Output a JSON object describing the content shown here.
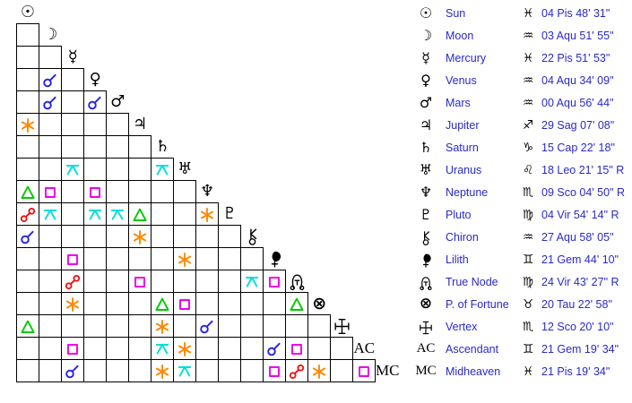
{
  "colors": {
    "conjunction": "#2222ee",
    "sextile": "#ff8800",
    "square": "#ee00ee",
    "trine": "#00cc00",
    "opposition": "#ee1111",
    "quincunx": "#00dede",
    "legend_text": "#2929cc",
    "glyph": "#000000",
    "grid_line": "#000000",
    "background": "#ffffff"
  },
  "chart_data": {
    "type": "table",
    "description": "Triangular astrological aspect grid (aspectarian) with planet position legend",
    "bodies": [
      {
        "id": "sun",
        "name": "Sun",
        "grid_label": "☉",
        "glyph_kind": "unicode",
        "sign": "Pisces",
        "sign_glyph": "♓",
        "position": "04 Pis 48' 31\"",
        "retrograde": false
      },
      {
        "id": "moon",
        "name": "Moon",
        "grid_label": "☽",
        "glyph_kind": "unicode",
        "sign": "Aquarius",
        "sign_glyph": "♒",
        "position": "03 Aqu 51' 55\"",
        "retrograde": false
      },
      {
        "id": "mercury",
        "name": "Mercury",
        "grid_label": "☿",
        "glyph_kind": "unicode",
        "sign": "Pisces",
        "sign_glyph": "♓",
        "position": "22 Pis 51' 53\"",
        "retrograde": false
      },
      {
        "id": "venus",
        "name": "Venus",
        "grid_label": "♀",
        "glyph_kind": "unicode",
        "sign": "Aquarius",
        "sign_glyph": "♒",
        "position": "04 Aqu 34' 09\"",
        "retrograde": false
      },
      {
        "id": "mars",
        "name": "Mars",
        "grid_label": "♂",
        "glyph_kind": "unicode",
        "sign": "Aquarius",
        "sign_glyph": "♒",
        "position": "00 Aqu 56' 44\"",
        "retrograde": false
      },
      {
        "id": "jupiter",
        "name": "Jupiter",
        "grid_label": "♃",
        "glyph_kind": "unicode",
        "sign": "Sagittarius",
        "sign_glyph": "♐",
        "position": "29 Sag 07' 08\"",
        "retrograde": false
      },
      {
        "id": "saturn",
        "name": "Saturn",
        "grid_label": "♄",
        "glyph_kind": "unicode",
        "sign": "Capricorn",
        "sign_glyph": "♑",
        "position": "15 Cap 22' 18\"",
        "retrograde": false
      },
      {
        "id": "uranus",
        "name": "Uranus",
        "grid_label": "♅",
        "glyph_kind": "unicode",
        "sign": "Leo",
        "sign_glyph": "♌",
        "position": "18 Leo 21' 15\" R",
        "retrograde": true
      },
      {
        "id": "neptune",
        "name": "Neptune",
        "grid_label": "♆",
        "glyph_kind": "unicode",
        "sign": "Scorpio",
        "sign_glyph": "♏",
        "position": "09 Sco 04' 50\" R",
        "retrograde": true
      },
      {
        "id": "pluto",
        "name": "Pluto",
        "grid_label": "♇",
        "glyph_kind": "unicode",
        "sign": "Virgo",
        "sign_glyph": "♍",
        "position": "04 Vir 54' 14\" R",
        "retrograde": true
      },
      {
        "id": "chiron",
        "name": "Chiron",
        "grid_label": "chiron",
        "glyph_kind": "svg",
        "sign": "Aquarius",
        "sign_glyph": "♒",
        "position": "27 Aqu 58' 05\"",
        "retrograde": false
      },
      {
        "id": "lilith",
        "name": "Lilith",
        "grid_label": "lilith",
        "glyph_kind": "svg",
        "sign": "Gemini",
        "sign_glyph": "♊",
        "position": "21 Gem 44' 10\"",
        "retrograde": false
      },
      {
        "id": "true-node",
        "name": "True Node",
        "grid_label": "true-node",
        "glyph_kind": "svg",
        "sign": "Virgo",
        "sign_glyph": "♍",
        "position": "24 Vir 43' 27\" R",
        "retrograde": true
      },
      {
        "id": "p-of-fortune",
        "name": "P. of Fortune",
        "grid_label": "⊗",
        "glyph_kind": "unicode",
        "sign": "Taurus",
        "sign_glyph": "♉",
        "position": "20 Tau 22' 58\"",
        "retrograde": false
      },
      {
        "id": "vertex",
        "name": "Vertex",
        "grid_label": "vertex",
        "glyph_kind": "svg",
        "sign": "Scorpio",
        "sign_glyph": "♏",
        "position": "12 Sco 20' 10\"",
        "retrograde": false
      },
      {
        "id": "ascendant",
        "name": "Ascendant",
        "grid_label": "AC",
        "glyph_kind": "serif",
        "sign": "Gemini",
        "sign_glyph": "♊",
        "position": "21 Gem 19' 34\"",
        "retrograde": false
      },
      {
        "id": "midheaven",
        "name": "Midheaven",
        "grid_label": "MC",
        "glyph_kind": "serif",
        "sign": "Pisces",
        "sign_glyph": "♓",
        "position": "21 Pis 19' 34\"",
        "retrograde": false
      }
    ],
    "aspects": [
      {
        "a": "venus",
        "b": "moon",
        "type": "conjunction"
      },
      {
        "a": "mars",
        "b": "moon",
        "type": "conjunction"
      },
      {
        "a": "mars",
        "b": "venus",
        "type": "conjunction"
      },
      {
        "a": "jupiter",
        "b": "sun",
        "type": "sextile"
      },
      {
        "a": "uranus",
        "b": "mercury",
        "type": "quincunx"
      },
      {
        "a": "uranus",
        "b": "saturn",
        "type": "quincunx"
      },
      {
        "a": "neptune",
        "b": "sun",
        "type": "trine"
      },
      {
        "a": "neptune",
        "b": "moon",
        "type": "square"
      },
      {
        "a": "neptune",
        "b": "venus",
        "type": "square"
      },
      {
        "a": "pluto",
        "b": "sun",
        "type": "opposition"
      },
      {
        "a": "pluto",
        "b": "moon",
        "type": "quincunx"
      },
      {
        "a": "pluto",
        "b": "venus",
        "type": "quincunx"
      },
      {
        "a": "pluto",
        "b": "mars",
        "type": "quincunx"
      },
      {
        "a": "pluto",
        "b": "jupiter",
        "type": "trine"
      },
      {
        "a": "pluto",
        "b": "neptune",
        "type": "sextile"
      },
      {
        "a": "chiron",
        "b": "sun",
        "type": "conjunction"
      },
      {
        "a": "chiron",
        "b": "jupiter",
        "type": "sextile"
      },
      {
        "a": "lilith",
        "b": "mercury",
        "type": "square"
      },
      {
        "a": "lilith",
        "b": "uranus",
        "type": "sextile"
      },
      {
        "a": "true-node",
        "b": "mercury",
        "type": "opposition"
      },
      {
        "a": "true-node",
        "b": "jupiter",
        "type": "square"
      },
      {
        "a": "true-node",
        "b": "chiron",
        "type": "quincunx"
      },
      {
        "a": "true-node",
        "b": "lilith",
        "type": "square"
      },
      {
        "a": "p-of-fortune",
        "b": "mercury",
        "type": "sextile"
      },
      {
        "a": "p-of-fortune",
        "b": "saturn",
        "type": "trine"
      },
      {
        "a": "p-of-fortune",
        "b": "uranus",
        "type": "square"
      },
      {
        "a": "p-of-fortune",
        "b": "true-node",
        "type": "trine"
      },
      {
        "a": "vertex",
        "b": "sun",
        "type": "trine"
      },
      {
        "a": "vertex",
        "b": "saturn",
        "type": "sextile"
      },
      {
        "a": "vertex",
        "b": "neptune",
        "type": "conjunction"
      },
      {
        "a": "ascendant",
        "b": "mercury",
        "type": "square"
      },
      {
        "a": "ascendant",
        "b": "saturn",
        "type": "quincunx"
      },
      {
        "a": "ascendant",
        "b": "uranus",
        "type": "sextile"
      },
      {
        "a": "ascendant",
        "b": "lilith",
        "type": "conjunction"
      },
      {
        "a": "ascendant",
        "b": "true-node",
        "type": "square"
      },
      {
        "a": "midheaven",
        "b": "mercury",
        "type": "conjunction"
      },
      {
        "a": "midheaven",
        "b": "saturn",
        "type": "sextile"
      },
      {
        "a": "midheaven",
        "b": "uranus",
        "type": "quincunx"
      },
      {
        "a": "midheaven",
        "b": "lilith",
        "type": "square"
      },
      {
        "a": "midheaven",
        "b": "true-node",
        "type": "opposition"
      },
      {
        "a": "midheaven",
        "b": "p-of-fortune",
        "type": "sextile"
      },
      {
        "a": "midheaven",
        "b": "ascendant",
        "type": "square"
      }
    ]
  }
}
